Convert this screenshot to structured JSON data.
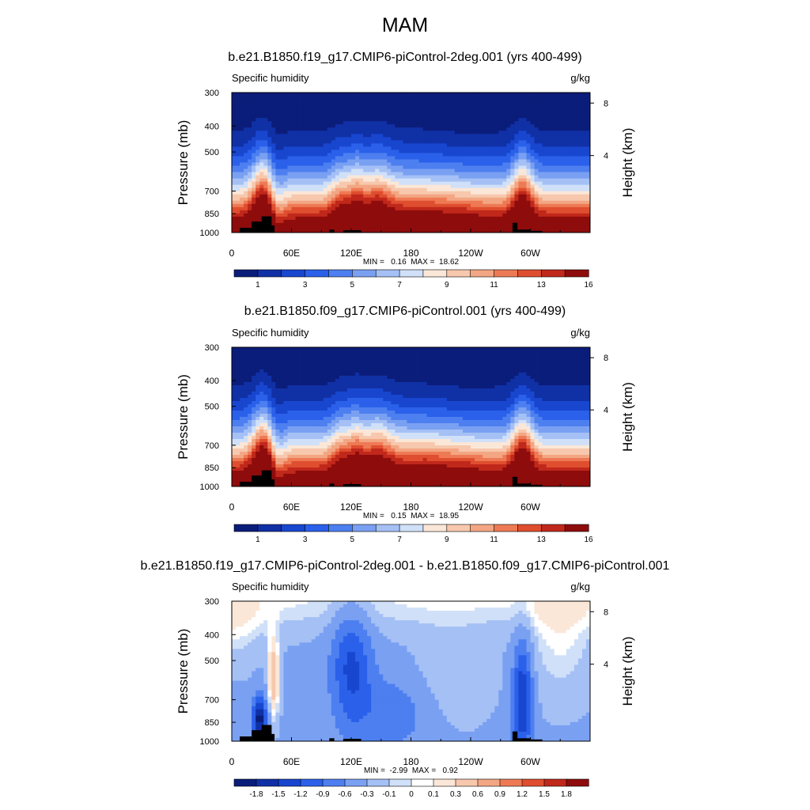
{
  "page": {
    "title": "MAM"
  },
  "colors": {
    "abs_levels": [
      "#0b1d7a",
      "#1030a6",
      "#1846cf",
      "#2a60ea",
      "#4d7ff0",
      "#7aa0f2",
      "#a5c0f5",
      "#d0e0f8",
      "#fbe7d8",
      "#f7c8ad",
      "#f3a683",
      "#ee7a55",
      "#df4e2f",
      "#c0281b",
      "#8e0c0c"
    ],
    "diff_levels": [
      "#0b1d7a",
      "#1030a6",
      "#1846cf",
      "#2a60ea",
      "#4d7ff0",
      "#7aa0f2",
      "#a5c0f5",
      "#d0e0f8",
      "#ffffff",
      "#fbe7d8",
      "#f7c8ad",
      "#f3a683",
      "#ee7a55",
      "#df4e2f",
      "#c0281b",
      "#8e0c0c"
    ],
    "topography": "#000000"
  },
  "chart_data": [
    {
      "type": "heatmap",
      "title": "b.e21.B1850.f19_g17.CMIP6-piControl-2deg.001 (yrs 400-499)",
      "left_label": "Specific humidity",
      "right_label": "g/kg",
      "ylabel": "Pressure (mb)",
      "ylabel_right": "Height (km)",
      "xticks": [
        "0",
        "60E",
        "120E",
        "180",
        "120W",
        "60W"
      ],
      "yticks": [
        "300",
        "400",
        "500",
        "700",
        "850",
        "1000"
      ],
      "yticks_right": [
        "8",
        "4"
      ],
      "stats": "MIN =   0.16  MAX =  18.62",
      "colorbar_labels": [
        "1",
        "3",
        "5",
        "7",
        "9",
        "11",
        "13",
        "16"
      ],
      "min": 0.16,
      "max": 18.62,
      "colorscale": "abs"
    },
    {
      "type": "heatmap",
      "title": "b.e21.B1850.f09_g17.CMIP6-piControl.001 (yrs 400-499)",
      "left_label": "Specific humidity",
      "right_label": "g/kg",
      "ylabel": "Pressure (mb)",
      "ylabel_right": "Height (km)",
      "xticks": [
        "0",
        "60E",
        "120E",
        "180",
        "120W",
        "60W"
      ],
      "yticks": [
        "300",
        "400",
        "500",
        "700",
        "850",
        "1000"
      ],
      "yticks_right": [
        "8",
        "4"
      ],
      "stats": "MIN =   0.15  MAX =  18.95",
      "colorbar_labels": [
        "1",
        "3",
        "5",
        "7",
        "9",
        "11",
        "13",
        "16"
      ],
      "min": 0.15,
      "max": 18.95,
      "colorscale": "abs"
    },
    {
      "type": "heatmap",
      "title": "b.e21.B1850.f19_g17.CMIP6-piControl-2deg.001 - b.e21.B1850.f09_g17.CMIP6-piControl.001",
      "left_label": "Specific humidity",
      "right_label": "g/kg",
      "ylabel": "Pressure (mb)",
      "ylabel_right": "Height (km)",
      "xticks": [
        "0",
        "60E",
        "120E",
        "180",
        "120W",
        "60W"
      ],
      "yticks": [
        "300",
        "400",
        "500",
        "700",
        "850",
        "1000"
      ],
      "yticks_right": [
        "8",
        "4"
      ],
      "stats": "MIN =  -2.99  MAX =   0.92",
      "colorbar_labels": [
        "-1.8",
        "-1.5",
        "-1.2",
        "-0.9",
        "-0.6",
        "-0.3",
        "-0.1",
        "0",
        "0.1",
        "0.3",
        "0.6",
        "0.9",
        "1.2",
        "1.5",
        "1.8"
      ],
      "min": -2.99,
      "max": 0.92,
      "colorscale": "diff"
    }
  ]
}
